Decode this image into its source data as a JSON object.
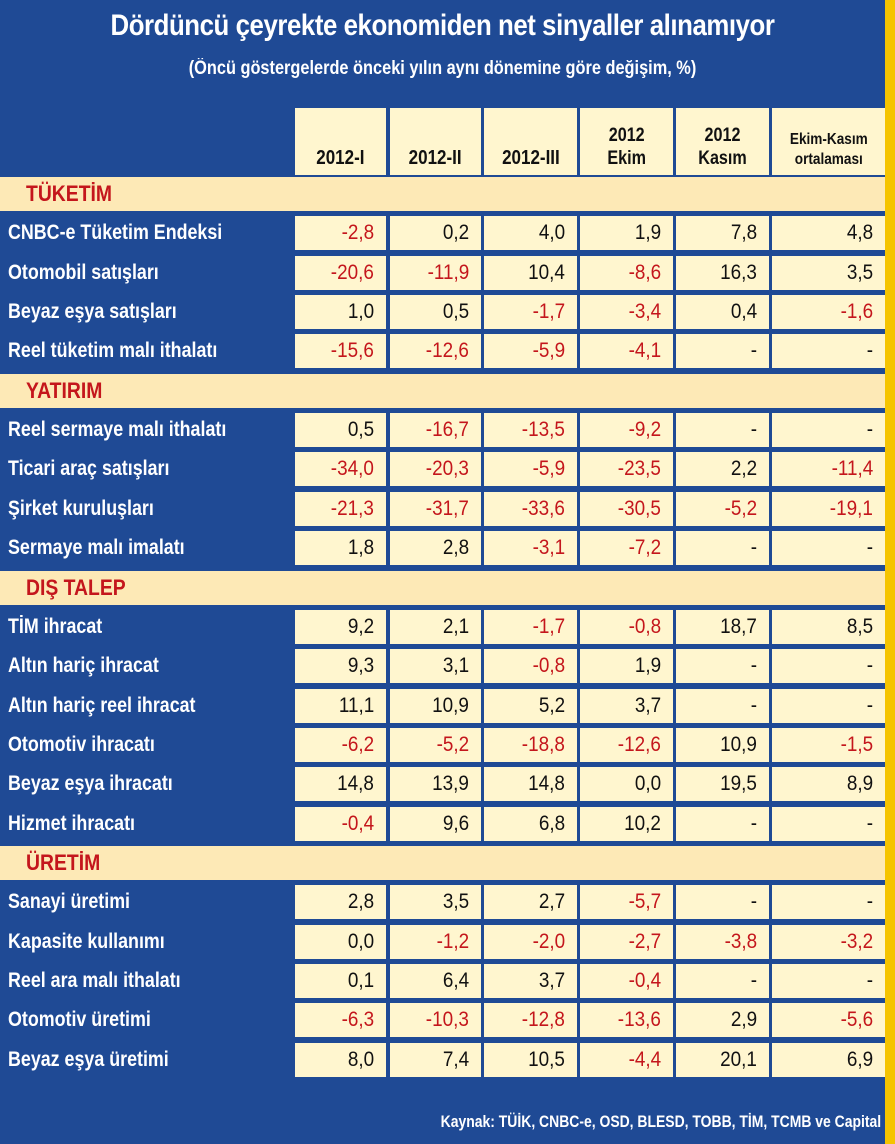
{
  "title": "Dördüncü çeyrekte ekonomiden net sinyaller alınamıyor",
  "subtitle": "(Öncü göstergelerde önceki yılın aynı dönemine göre değişim, %)",
  "columns": [
    "2012-I",
    "2012-II",
    "2012-III",
    "2012\nEkim",
    "2012\nKasım",
    "Ekim-Kasım\nortalaması"
  ],
  "sections": [
    {
      "name": "TÜKETİM",
      "rows": [
        {
          "label": "CNBC-e Tüketim Endeksi",
          "values": [
            "-2,8",
            "0,2",
            "4,0",
            "1,9",
            "7,8",
            "4,8"
          ]
        },
        {
          "label": "Otomobil satışları",
          "values": [
            "-20,6",
            "-11,9",
            "10,4",
            "-8,6",
            "16,3",
            "3,5"
          ]
        },
        {
          "label": "Beyaz eşya satışları",
          "values": [
            "1,0",
            "0,5",
            "-1,7",
            "-3,4",
            "0,4",
            "-1,6"
          ]
        },
        {
          "label": "Reel tüketim malı ithalatı",
          "values": [
            "-15,6",
            "-12,6",
            "-5,9",
            "-4,1",
            "-",
            "-"
          ]
        }
      ]
    },
    {
      "name": "YATIRIM",
      "rows": [
        {
          "label": "Reel sermaye malı ithalatı",
          "values": [
            "0,5",
            "-16,7",
            "-13,5",
            "-9,2",
            "-",
            "-"
          ]
        },
        {
          "label": "Ticari araç satışları",
          "values": [
            "-34,0",
            "-20,3",
            "-5,9",
            "-23,5",
            "2,2",
            "-11,4"
          ]
        },
        {
          "label": "Şirket kuruluşları",
          "values": [
            "-21,3",
            "-31,7",
            "-33,6",
            "-30,5",
            "-5,2",
            "-19,1"
          ]
        },
        {
          "label": "Sermaye malı imalatı",
          "values": [
            "1,8",
            "2,8",
            "-3,1",
            "-7,2",
            "-",
            "-"
          ]
        }
      ]
    },
    {
      "name": "DIŞ TALEP",
      "rows": [
        {
          "label": "TİM ihracat",
          "values": [
            "9,2",
            "2,1",
            "-1,7",
            "-0,8",
            "18,7",
            "8,5"
          ]
        },
        {
          "label": "Altın hariç ihracat",
          "values": [
            "9,3",
            "3,1",
            "-0,8",
            "1,9",
            "-",
            "-"
          ]
        },
        {
          "label": "Altın hariç reel ihracat",
          "values": [
            "11,1",
            "10,9",
            "5,2",
            "3,7",
            "-",
            "-"
          ]
        },
        {
          "label": "Otomotiv ihracatı",
          "values": [
            "-6,2",
            "-5,2",
            "-18,8",
            "-12,6",
            "10,9",
            "-1,5"
          ]
        },
        {
          "label": "Beyaz eşya ihracatı",
          "values": [
            "14,8",
            "13,9",
            "14,8",
            "0,0",
            "19,5",
            "8,9"
          ]
        },
        {
          "label": "Hizmet ihracatı",
          "values": [
            "-0,4",
            "9,6",
            "6,8",
            "10,2",
            "-",
            "-"
          ]
        }
      ]
    },
    {
      "name": "ÜRETİM",
      "rows": [
        {
          "label": "Sanayi üretimi",
          "values": [
            "2,8",
            "3,5",
            "2,7",
            "-5,7",
            "-",
            "-"
          ]
        },
        {
          "label": "Kapasite kullanımı",
          "values": [
            "0,0",
            "-1,2",
            "-2,0",
            "-2,7",
            "-3,8",
            "-3,2"
          ]
        },
        {
          "label": "Reel ara malı ithalatı",
          "values": [
            "0,1",
            "6,4",
            "3,7",
            "-0,4",
            "-",
            "-"
          ]
        },
        {
          "label": "Otomotiv üretimi",
          "values": [
            "-6,3",
            "-10,3",
            "-12,8",
            "-13,6",
            "2,9",
            "-5,6"
          ]
        },
        {
          "label": "Beyaz eşya üretimi",
          "values": [
            "8,0",
            "7,4",
            "10,5",
            "-4,4",
            "20,1",
            "6,9"
          ]
        }
      ]
    }
  ],
  "source": "Kaynak: TÜİK, CNBC-e, OSD, BLESD, TOBB, TİM, TCMB ve Capital",
  "colors": {
    "background": "#1f4a95",
    "cell": "#fff6cf",
    "section": "#fde9b6",
    "negative": "#c4161c",
    "accent_stripe": "#f5c400"
  }
}
